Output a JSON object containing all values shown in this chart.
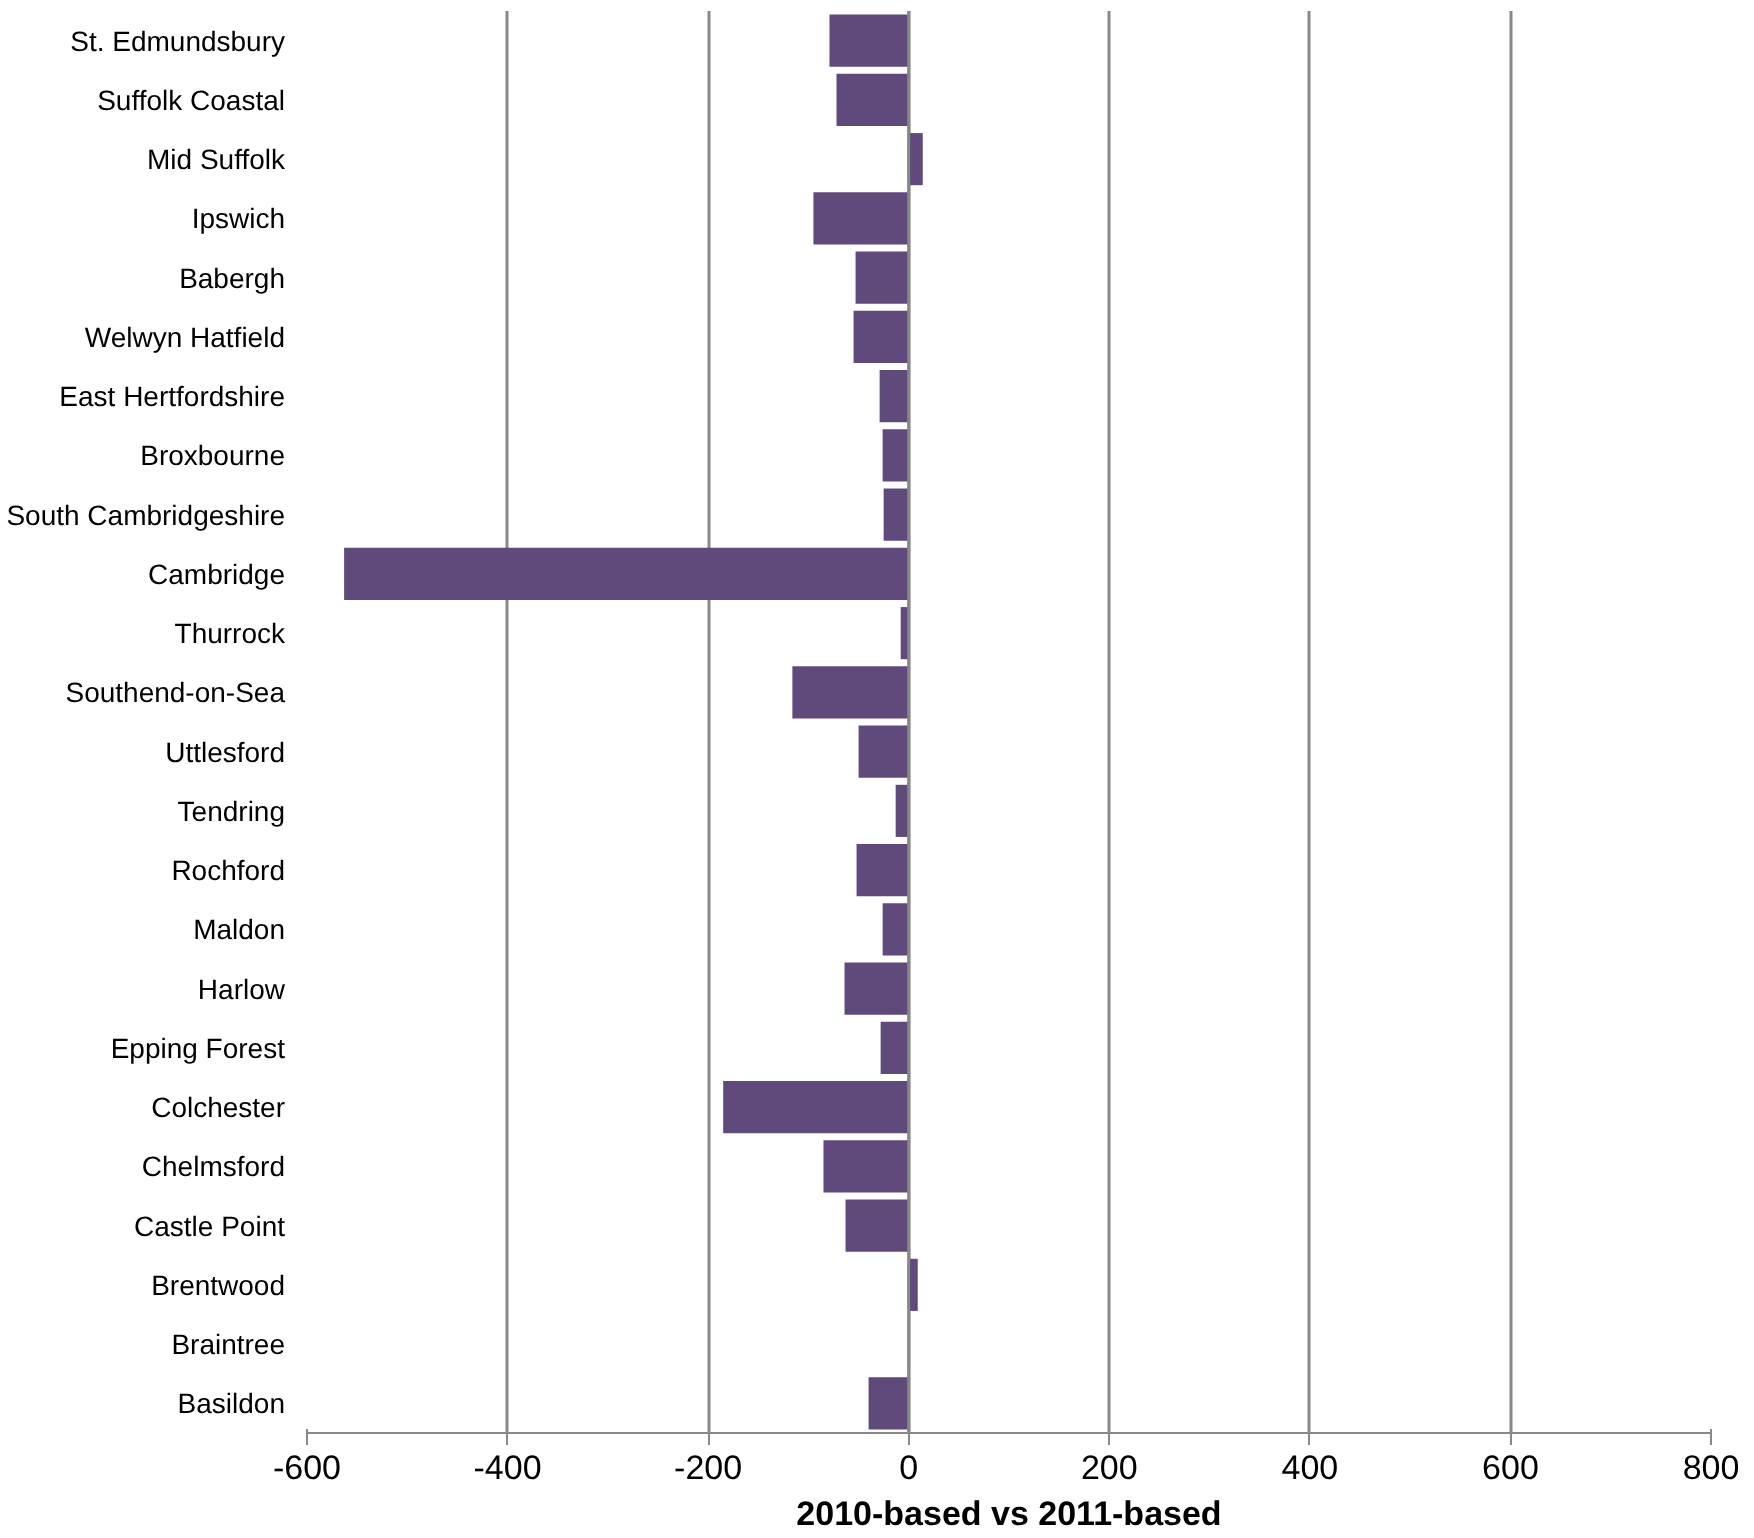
{
  "chart_data": {
    "type": "bar",
    "orientation": "horizontal",
    "xlabel": "2010-based vs 2011-based",
    "categories": [
      "St. Edmundsbury",
      "Suffolk Coastal",
      "Mid Suffolk",
      "Ipswich",
      "Babergh",
      "Welwyn Hatfield",
      "East Hertfordshire",
      "Broxbourne",
      "South Cambridgeshire",
      "Cambridge",
      "Thurrock",
      "Southend-on-Sea",
      "Uttlesford",
      "Tendring",
      "Rochford",
      "Maldon",
      "Harlow",
      "Epping Forest",
      "Colchester",
      "Chelmsford",
      "Castle Point",
      "Brentwood",
      "Braintree",
      "Basildon"
    ],
    "values": [
      -79,
      -72,
      14,
      -95,
      -53,
      -55,
      -29,
      -26,
      -25,
      -563,
      -8,
      -116,
      -50,
      -13,
      -52,
      -26,
      -64,
      -28,
      -185,
      -85,
      -63,
      9,
      0,
      -40
    ],
    "color": "#604a7b",
    "xlim": [
      -600,
      800
    ],
    "xticks": [
      -600,
      -400,
      -200,
      0,
      200,
      400,
      600,
      800
    ],
    "grid": "x"
  }
}
